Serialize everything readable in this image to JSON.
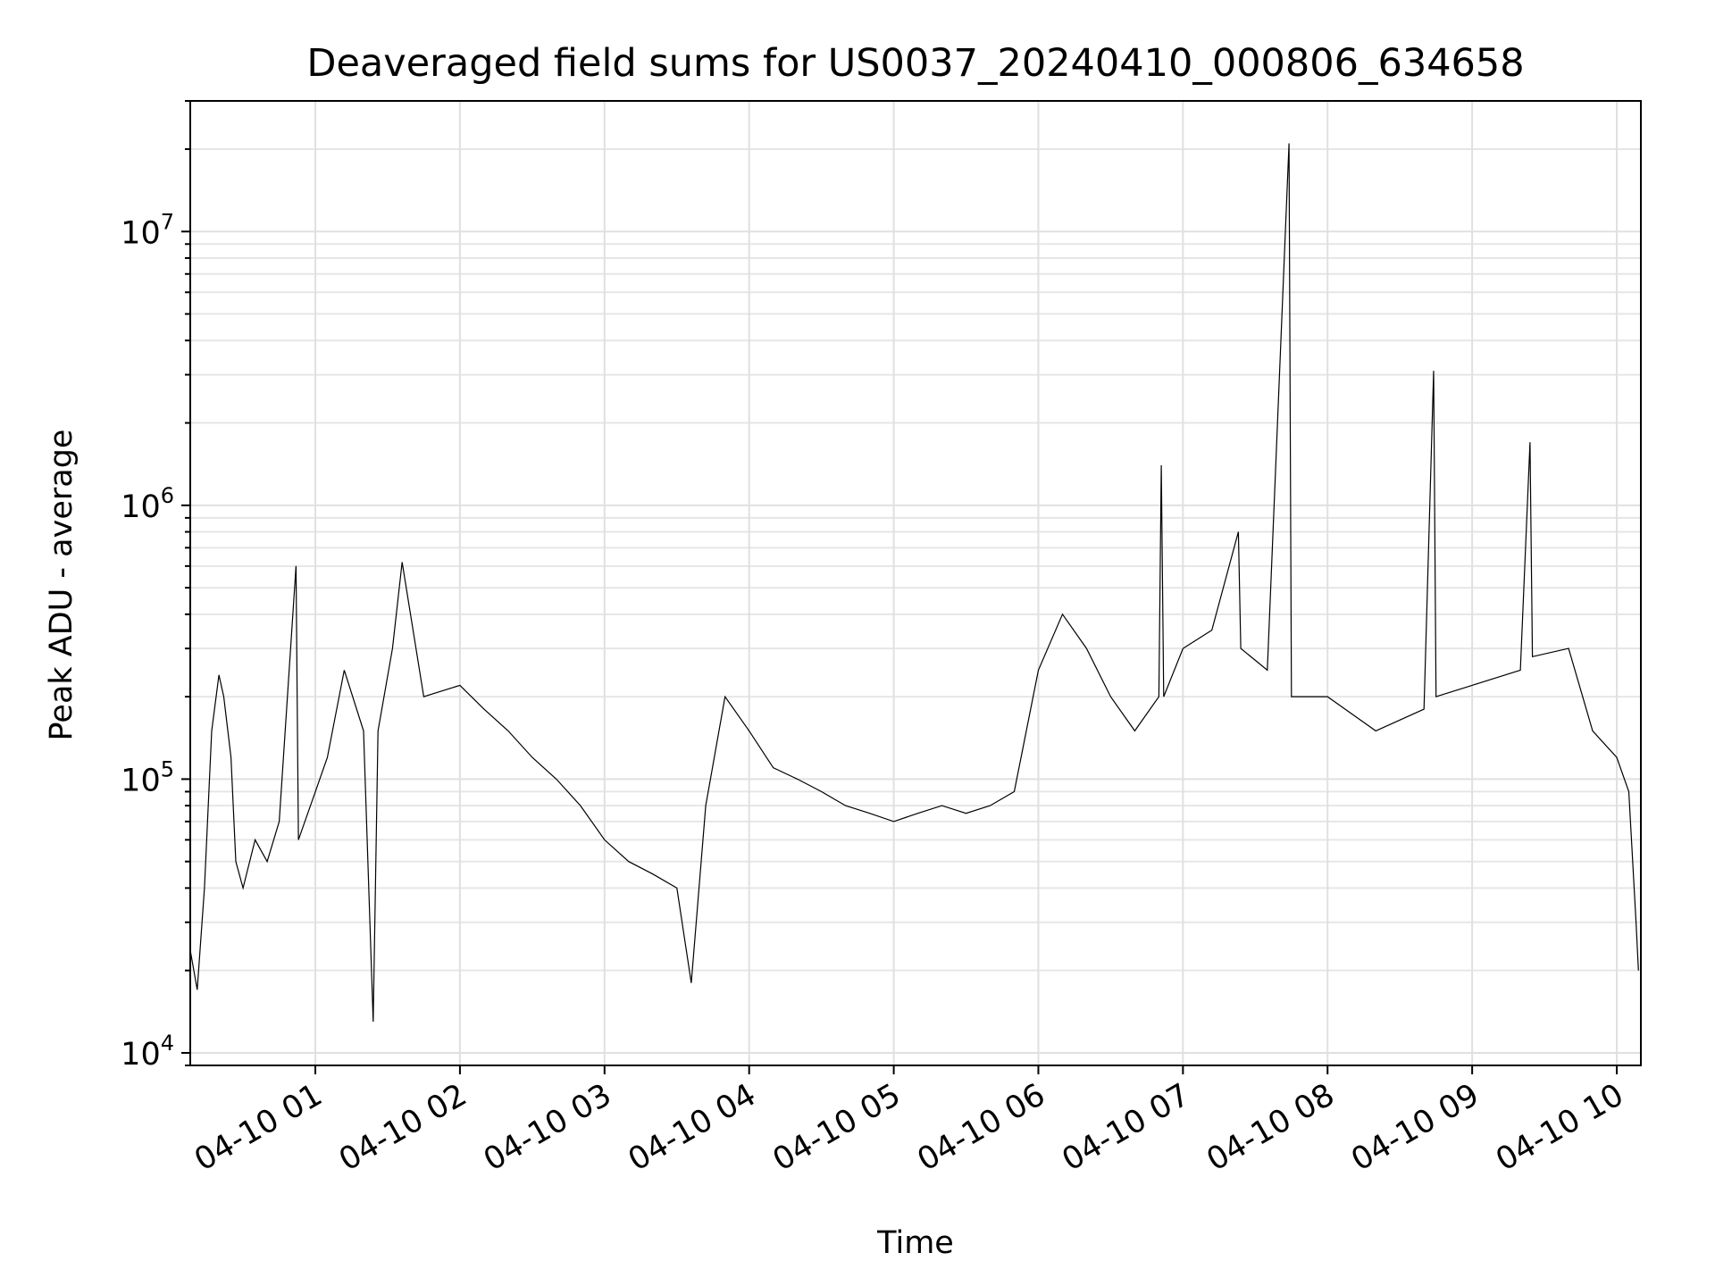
{
  "chart_data": {
    "type": "line",
    "title": "Deaveraged field sums for US0037_20240410_000806_634658",
    "xlabel": "Time",
    "ylabel": "Peak ADU - average",
    "yscale": "log",
    "ylim": [
      9000,
      30000000
    ],
    "xlim": [
      "2024-04-10 00:08:06",
      "2024-04-10 10:10:00"
    ],
    "grid": true,
    "x_ticks": [
      {
        "t": "2024-04-10 01:00",
        "label": "04-10 01"
      },
      {
        "t": "2024-04-10 02:00",
        "label": "04-10 02"
      },
      {
        "t": "2024-04-10 03:00",
        "label": "04-10 03"
      },
      {
        "t": "2024-04-10 04:00",
        "label": "04-10 04"
      },
      {
        "t": "2024-04-10 05:00",
        "label": "04-10 05"
      },
      {
        "t": "2024-04-10 06:00",
        "label": "04-10 06"
      },
      {
        "t": "2024-04-10 07:00",
        "label": "04-10 07"
      },
      {
        "t": "2024-04-10 08:00",
        "label": "04-10 08"
      },
      {
        "t": "2024-04-10 09:00",
        "label": "04-10 09"
      },
      {
        "t": "2024-04-10 10:00",
        "label": "04-10 10"
      }
    ],
    "y_ticks": [
      {
        "value": 10000,
        "base": "10",
        "exp": "4"
      },
      {
        "value": 100000,
        "base": "10",
        "exp": "5"
      },
      {
        "value": 1000000,
        "base": "10",
        "exp": "6"
      },
      {
        "value": 10000000,
        "base": "10",
        "exp": "7"
      }
    ],
    "series": [
      {
        "color": "#000000",
        "points": [
          [
            "2024-04-10 00:08",
            24000
          ],
          [
            "2024-04-10 00:11",
            17000
          ],
          [
            "2024-04-10 00:14",
            40000
          ],
          [
            "2024-04-10 00:17",
            150000
          ],
          [
            "2024-04-10 00:20",
            240000
          ],
          [
            "2024-04-10 00:22",
            200000
          ],
          [
            "2024-04-10 00:25",
            120000
          ],
          [
            "2024-04-10 00:27",
            50000
          ],
          [
            "2024-04-10 00:30",
            40000
          ],
          [
            "2024-04-10 00:35",
            60000
          ],
          [
            "2024-04-10 00:40",
            50000
          ],
          [
            "2024-04-10 00:45",
            70000
          ],
          [
            "2024-04-10 00:52",
            600000
          ],
          [
            "2024-04-10 00:53",
            60000
          ],
          [
            "2024-04-10 00:58",
            80000
          ],
          [
            "2024-04-10 01:05",
            120000
          ],
          [
            "2024-04-10 01:12",
            250000
          ],
          [
            "2024-04-10 01:20",
            150000
          ],
          [
            "2024-04-10 01:24",
            13000
          ],
          [
            "2024-04-10 01:26",
            150000
          ],
          [
            "2024-04-10 01:32",
            300000
          ],
          [
            "2024-04-10 01:36",
            620000
          ],
          [
            "2024-04-10 01:45",
            200000
          ],
          [
            "2024-04-10 02:00",
            220000
          ],
          [
            "2024-04-10 02:10",
            180000
          ],
          [
            "2024-04-10 02:20",
            150000
          ],
          [
            "2024-04-10 02:30",
            120000
          ],
          [
            "2024-04-10 02:40",
            100000
          ],
          [
            "2024-04-10 02:50",
            80000
          ],
          [
            "2024-04-10 03:00",
            60000
          ],
          [
            "2024-04-10 03:10",
            50000
          ],
          [
            "2024-04-10 03:20",
            45000
          ],
          [
            "2024-04-10 03:30",
            40000
          ],
          [
            "2024-04-10 03:36",
            18000
          ],
          [
            "2024-04-10 03:42",
            80000
          ],
          [
            "2024-04-10 03:50",
            200000
          ],
          [
            "2024-04-10 04:00",
            150000
          ],
          [
            "2024-04-10 04:10",
            110000
          ],
          [
            "2024-04-10 04:20",
            100000
          ],
          [
            "2024-04-10 04:30",
            90000
          ],
          [
            "2024-04-10 04:40",
            80000
          ],
          [
            "2024-04-10 04:50",
            75000
          ],
          [
            "2024-04-10 05:00",
            70000
          ],
          [
            "2024-04-10 05:10",
            75000
          ],
          [
            "2024-04-10 05:20",
            80000
          ],
          [
            "2024-04-10 05:30",
            75000
          ],
          [
            "2024-04-10 05:40",
            80000
          ],
          [
            "2024-04-10 05:50",
            90000
          ],
          [
            "2024-04-10 06:00",
            250000
          ],
          [
            "2024-04-10 06:10",
            400000
          ],
          [
            "2024-04-10 06:20",
            300000
          ],
          [
            "2024-04-10 06:30",
            200000
          ],
          [
            "2024-04-10 06:40",
            150000
          ],
          [
            "2024-04-10 06:50",
            200000
          ],
          [
            "2024-04-10 06:51",
            1400000
          ],
          [
            "2024-04-10 06:52",
            200000
          ],
          [
            "2024-04-10 07:00",
            300000
          ],
          [
            "2024-04-10 07:12",
            350000
          ],
          [
            "2024-04-10 07:23",
            800000
          ],
          [
            "2024-04-10 07:24",
            300000
          ],
          [
            "2024-04-10 07:35",
            250000
          ],
          [
            "2024-04-10 07:44",
            21000000
          ],
          [
            "2024-04-10 07:45",
            200000
          ],
          [
            "2024-04-10 08:00",
            200000
          ],
          [
            "2024-04-10 08:20",
            150000
          ],
          [
            "2024-04-10 08:40",
            180000
          ],
          [
            "2024-04-10 08:44",
            3100000
          ],
          [
            "2024-04-10 08:45",
            200000
          ],
          [
            "2024-04-10 09:00",
            220000
          ],
          [
            "2024-04-10 09:20",
            250000
          ],
          [
            "2024-04-10 09:24",
            1700000
          ],
          [
            "2024-04-10 09:25",
            280000
          ],
          [
            "2024-04-10 09:40",
            300000
          ],
          [
            "2024-04-10 09:50",
            150000
          ],
          [
            "2024-04-10 10:00",
            120000
          ],
          [
            "2024-04-10 10:05",
            90000
          ],
          [
            "2024-04-10 10:08",
            30000
          ],
          [
            "2024-04-10 10:09",
            20000
          ]
        ]
      }
    ]
  }
}
